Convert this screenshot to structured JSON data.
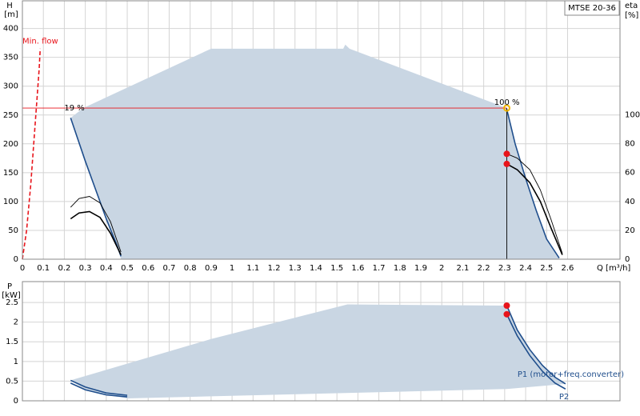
{
  "chart_data": [
    {
      "type": "line",
      "title": "MTSE 20-36",
      "xlabel": "Q [m³/h]",
      "ylabel": "H",
      "yunit": "[m]",
      "y2label": "eta",
      "y2unit": "[%]",
      "xlim": [
        0,
        2.85
      ],
      "xticks": [
        0,
        0.1,
        0.2,
        0.3,
        0.4,
        0.5,
        0.6,
        0.7,
        0.8,
        0.9,
        1,
        1.1,
        1.2,
        1.3,
        1.4,
        1.5,
        1.6,
        1.7,
        1.8,
        1.9,
        2,
        2.1,
        2.2,
        2.3,
        2.4,
        2.5,
        2.6
      ],
      "ylim": [
        0,
        448
      ],
      "yticks": [
        0,
        50,
        100,
        150,
        200,
        250,
        300,
        350,
        400
      ],
      "y2lim": [
        0,
        179
      ],
      "y2ticks": [
        0,
        20,
        40,
        60,
        80,
        100
      ],
      "grid": true,
      "xtick_labels": true,
      "series": [
        {
          "style": "area",
          "color": "#c9d6e3",
          "x": [
            0.23,
            0.29,
            0.9,
            1.53,
            1.54,
            1.56,
            2.31,
            2.35,
            2.4,
            2.45,
            2.5,
            2.56,
            0.47,
            0.45,
            0.4,
            0.35,
            0.3
          ],
          "values": [
            245,
            262,
            365,
            365,
            372,
            365,
            262,
            200,
            140,
            85,
            35,
            0,
            0,
            25,
            70,
            120,
            170
          ]
        },
        {
          "style": "dashed",
          "color": "#e8141b",
          "x": [
            0,
            0.02,
            0.04,
            0.06,
            0.08,
            0.085
          ],
          "values": [
            0,
            50,
            130,
            230,
            330,
            365
          ]
        },
        {
          "style": "line",
          "color": "#1f4e8c",
          "x": [
            0.23,
            0.3,
            0.35,
            0.4,
            0.45,
            0.47
          ],
          "values": [
            245,
            170,
            120,
            70,
            25,
            5
          ]
        },
        {
          "style": "line",
          "color": "#1f4e8c",
          "x": [
            2.31,
            2.35,
            2.4,
            2.45,
            2.5,
            2.56
          ],
          "values": [
            260,
            200,
            140,
            85,
            35,
            2
          ]
        },
        {
          "style": "thin",
          "color": "#000000",
          "axis": "y2",
          "x": [
            0.23,
            0.27,
            0.32,
            0.37,
            0.42,
            0.47
          ],
          "values": [
            36,
            42,
            43.5,
            39,
            26,
            5
          ]
        },
        {
          "style": "line",
          "color": "#000000",
          "axis": "y2",
          "x": [
            0.23,
            0.27,
            0.32,
            0.37,
            0.42,
            0.47
          ],
          "values": [
            28,
            32,
            33,
            29,
            18,
            3
          ]
        },
        {
          "style": "thin",
          "color": "#000000",
          "axis": "y2",
          "x": [
            2.31,
            2.36,
            2.42,
            2.47,
            2.52,
            2.575
          ],
          "values": [
            73,
            70,
            62,
            48,
            28,
            4
          ]
        },
        {
          "style": "line",
          "color": "#000000",
          "axis": "y2",
          "x": [
            2.31,
            2.36,
            2.42,
            2.47,
            2.52,
            2.575
          ],
          "values": [
            66,
            62,
            53,
            40,
            22,
            3
          ]
        },
        {
          "style": "thin",
          "color": "#e8141b",
          "x": [
            0,
            2.31
          ],
          "values": [
            262,
            262
          ]
        },
        {
          "style": "thin",
          "color": "#000000",
          "x": [
            2.31,
            2.31
          ],
          "values": [
            0,
            262
          ]
        },
        {
          "style": "ring",
          "color": "#f0b400",
          "x": [
            2.31
          ],
          "values": [
            262
          ]
        },
        {
          "style": "point",
          "color": "#e8141b",
          "axis": "y2",
          "x": [
            2.31,
            2.31
          ],
          "values": [
            73,
            66
          ]
        }
      ],
      "annotations": [
        {
          "text": "Min. flow",
          "color": "#e8141b",
          "x": 0,
          "y": 378
        },
        {
          "text": "19 %",
          "color": "#000000",
          "x": 0.2,
          "y": 262
        },
        {
          "text": "100 %",
          "color": "#000000",
          "x": 2.25,
          "y": 272
        }
      ]
    },
    {
      "type": "line",
      "ylabel": "P",
      "yunit": "[kW]",
      "xlim": [
        0,
        2.85
      ],
      "xticks": [
        0,
        0.1,
        0.2,
        0.3,
        0.4,
        0.5,
        0.6,
        0.7,
        0.8,
        0.9,
        1,
        1.1,
        1.2,
        1.3,
        1.4,
        1.5,
        1.6,
        1.7,
        1.8,
        1.9,
        2,
        2.1,
        2.2,
        2.3,
        2.4,
        2.5,
        2.6
      ],
      "ylim": [
        0,
        3.03
      ],
      "yticks": [
        0,
        0.5,
        1,
        1.5,
        2,
        2.5
      ],
      "grid": true,
      "xtick_labels": false,
      "series": [
        {
          "style": "area",
          "color": "#c9d6e3",
          "x": [
            0.23,
            0.9,
            1.55,
            2.31,
            2.36,
            2.42,
            2.48,
            2.54,
            2.59,
            2.31,
            0.5,
            0.4,
            0.3
          ],
          "values": [
            0.52,
            1.57,
            2.45,
            2.42,
            1.8,
            1.3,
            0.9,
            0.6,
            0.43,
            0.3,
            0.06,
            0.15,
            0.28
          ]
        },
        {
          "name": "P1 (motor+freq.converter)",
          "style": "line",
          "color": "#1f4e8c",
          "x": [
            2.31,
            2.36,
            2.42,
            2.48,
            2.54,
            2.59
          ],
          "values": [
            2.42,
            1.8,
            1.3,
            0.9,
            0.6,
            0.43
          ]
        },
        {
          "name": "P2",
          "style": "line",
          "color": "#1f4e8c",
          "x": [
            2.31,
            2.36,
            2.42,
            2.48,
            2.54,
            2.59
          ],
          "values": [
            2.2,
            1.65,
            1.15,
            0.75,
            0.45,
            0.3
          ]
        },
        {
          "style": "line",
          "color": "#1f4e8c",
          "x": [
            0.23,
            0.3,
            0.4,
            0.5
          ],
          "values": [
            0.52,
            0.35,
            0.2,
            0.14
          ]
        },
        {
          "style": "line",
          "color": "#1f4e8c",
          "x": [
            0.23,
            0.3,
            0.4,
            0.5
          ],
          "values": [
            0.45,
            0.28,
            0.15,
            0.1
          ]
        },
        {
          "style": "point",
          "color": "#e8141b",
          "x": [
            2.31,
            2.31
          ],
          "values": [
            2.42,
            2.2
          ]
        }
      ]
    }
  ]
}
